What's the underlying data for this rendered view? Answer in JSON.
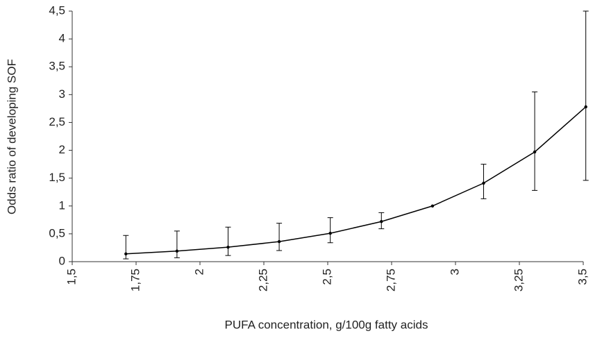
{
  "chart_data": {
    "type": "line",
    "x_label": "PUFA concentration, g/100g fatty acids",
    "y_label": "Odds ratio of developing SOF",
    "x": [
      1.71,
      1.91,
      2.11,
      2.31,
      2.51,
      2.71,
      2.91,
      3.11,
      3.31,
      3.51
    ],
    "series": [
      {
        "color": "#000000",
        "values": [
          0.14,
          0.19,
          0.26,
          0.36,
          0.51,
          0.72,
          1.0,
          1.41,
          1.97,
          2.78
        ],
        "upper": [
          0.47,
          0.55,
          0.62,
          0.69,
          0.79,
          0.88,
          null,
          1.75,
          3.05,
          4.5
        ],
        "lower": [
          0.05,
          0.07,
          0.11,
          0.2,
          0.34,
          0.59,
          null,
          1.13,
          1.28,
          1.46
        ]
      }
    ],
    "xlim": [
      1.5,
      3.5
    ],
    "xticks": [
      {
        "value": 1.5,
        "label": "1,5"
      },
      {
        "value": 1.75,
        "label": "1,75"
      },
      2,
      {
        "value": 2.25,
        "label": "2,25"
      },
      {
        "value": 2.5,
        "label": "2,5"
      },
      {
        "value": 2.75,
        "label": "2,75"
      },
      3,
      {
        "value": 3.25,
        "label": "3,25"
      },
      {
        "value": 3.5,
        "label": "3,5"
      }
    ],
    "ylim": [
      0,
      4.5
    ],
    "yticks": [
      0,
      {
        "value": 0.5,
        "label": "0,5"
      },
      1,
      {
        "value": 1.5,
        "label": "1,5"
      },
      2,
      {
        "value": 2.5,
        "label": "2,5"
      },
      3,
      {
        "value": 3.5,
        "label": "3,5"
      },
      4,
      {
        "value": 4.5,
        "label": "4,5"
      }
    ],
    "grid": false
  }
}
